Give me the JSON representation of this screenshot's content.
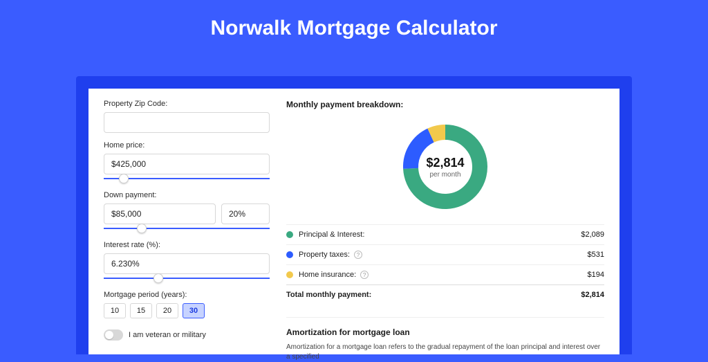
{
  "page": {
    "title": "Norwalk Mortgage Calculator",
    "background": "#3a5cff",
    "frame_accent": "#1f3fee",
    "panel_bg": "#ffffff"
  },
  "form": {
    "zip": {
      "label": "Property Zip Code:",
      "value": "",
      "placeholder": ""
    },
    "home_price": {
      "label": "Home price:",
      "value": "$425,000",
      "slider_pct": 9
    },
    "down_payment": {
      "label": "Down payment:",
      "value": "$85,000",
      "pct_value": "20%",
      "slider_pct": 20
    },
    "interest_rate": {
      "label": "Interest rate (%):",
      "value": "6.230%",
      "slider_pct": 30
    },
    "period": {
      "label": "Mortgage period (years):",
      "options": [
        "10",
        "15",
        "20",
        "30"
      ],
      "selected": "30"
    },
    "veteran": {
      "label": "I am veteran or military",
      "checked": false
    }
  },
  "breakdown": {
    "title": "Monthly payment breakdown:",
    "donut": {
      "center_value": "$2,814",
      "center_sub": "per month",
      "slices": [
        {
          "key": "principal_interest",
          "value": 2089,
          "color": "#3aa981"
        },
        {
          "key": "property_taxes",
          "value": 531,
          "color": "#2d5cff"
        },
        {
          "key": "home_insurance",
          "value": 194,
          "color": "#f2c94c"
        }
      ],
      "stroke_width": 22,
      "radius": 50
    },
    "items": [
      {
        "dot": "#3aa981",
        "label": "Principal & Interest:",
        "help": false,
        "value": "$2,089"
      },
      {
        "dot": "#2d5cff",
        "label": "Property taxes:",
        "help": true,
        "value": "$531"
      },
      {
        "dot": "#f2c94c",
        "label": "Home insurance:",
        "help": true,
        "value": "$194"
      }
    ],
    "total": {
      "label": "Total monthly payment:",
      "value": "$2,814"
    }
  },
  "amortization": {
    "title": "Amortization for mortgage loan",
    "text": "Amortization for a mortgage loan refers to the gradual repayment of the loan principal and interest over a specified"
  }
}
